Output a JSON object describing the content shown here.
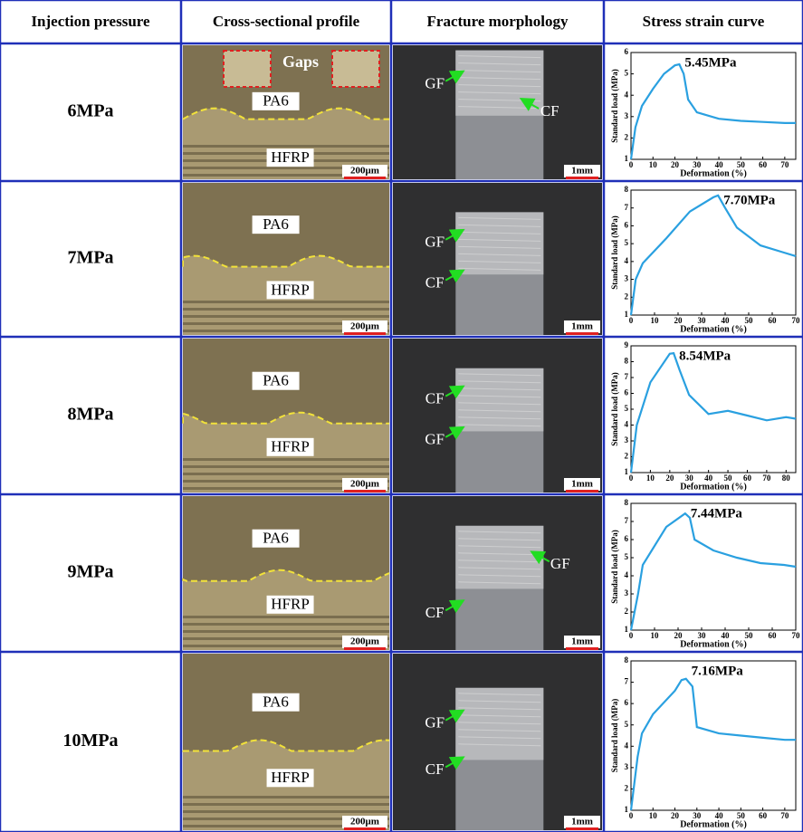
{
  "table": {
    "header": [
      "Injection pressure",
      "Cross-sectional profile",
      "Fracture morphology",
      "Stress strain curve"
    ],
    "rows": [
      {
        "pressure": "6MPa",
        "profile": {
          "labels": [
            "PA6",
            "HFRP"
          ],
          "gaps": "Gaps",
          "scale": "200μm"
        },
        "fracture": {
          "labels": [
            "GF",
            "CF"
          ],
          "scale": "1mm"
        },
        "chart": {
          "type": "line",
          "annotation": "5.45MPa",
          "x_label": "Deformation (%)",
          "y_label": "Standard load (MPa)",
          "color": "#2aa0e0",
          "x": [
            0,
            2,
            5,
            10,
            15,
            20,
            22,
            24,
            26,
            30,
            40,
            50,
            60,
            70,
            75
          ],
          "values": [
            1,
            2.5,
            3.5,
            4.3,
            5,
            5.4,
            5.45,
            5,
            3.8,
            3.2,
            2.9,
            2.8,
            2.75,
            2.7,
            2.7
          ],
          "xlim": [
            0,
            75
          ],
          "ylim": [
            1,
            6
          ],
          "xticks": [
            0,
            10,
            20,
            30,
            40,
            50,
            60,
            70
          ],
          "yticks": [
            1,
            2,
            3,
            4,
            5,
            6
          ]
        }
      },
      {
        "pressure": "7MPa",
        "profile": {
          "labels": [
            "PA6",
            "HFRP"
          ],
          "scale": "200μm"
        },
        "fracture": {
          "labels": [
            "GF",
            "CF"
          ],
          "scale": "1mm"
        },
        "chart": {
          "type": "line",
          "annotation": "7.70MPa",
          "x_label": "Deformation (%)",
          "y_label": "Standard load (MPa)",
          "color": "#2aa0e0",
          "x": [
            0,
            2,
            5,
            15,
            25,
            35,
            37,
            40,
            45,
            55,
            65,
            70
          ],
          "values": [
            1,
            3,
            3.9,
            5.3,
            6.8,
            7.6,
            7.7,
            7,
            5.9,
            4.9,
            4.5,
            4.3
          ],
          "xlim": [
            0,
            70
          ],
          "ylim": [
            1,
            8
          ],
          "xticks": [
            0,
            10,
            20,
            30,
            40,
            50,
            60,
            70
          ],
          "yticks": [
            1,
            2,
            3,
            4,
            5,
            6,
            7,
            8
          ]
        }
      },
      {
        "pressure": "8MPa",
        "profile": {
          "labels": [
            "PA6",
            "HFRP"
          ],
          "scale": "200μm"
        },
        "fracture": {
          "labels": [
            "CF",
            "GF"
          ],
          "scale": "1mm"
        },
        "chart": {
          "type": "line",
          "annotation": "8.54MPa",
          "x_label": "Deformation (%)",
          "y_label": "Standard load (MPa)",
          "color": "#2aa0e0",
          "x": [
            0,
            3,
            10,
            20,
            22,
            25,
            30,
            40,
            50,
            60,
            70,
            80,
            85
          ],
          "values": [
            1,
            4,
            6.7,
            8.5,
            8.54,
            7.5,
            5.9,
            4.7,
            4.9,
            4.6,
            4.3,
            4.5,
            4.4
          ],
          "xlim": [
            0,
            85
          ],
          "ylim": [
            1,
            9
          ],
          "xticks": [
            0,
            10,
            20,
            30,
            40,
            50,
            60,
            70,
            80
          ],
          "yticks": [
            1,
            2,
            3,
            4,
            5,
            6,
            7,
            8,
            9
          ]
        }
      },
      {
        "pressure": "9MPa",
        "profile": {
          "labels": [
            "PA6",
            "HFRP"
          ],
          "scale": "200μm"
        },
        "fracture": {
          "labels": [
            "GF",
            "CF"
          ],
          "scale": "1mm"
        },
        "chart": {
          "type": "line",
          "annotation": "7.44MPa",
          "x_label": "Deformation (%)",
          "y_label": "Standard load (MPa)",
          "color": "#2aa0e0",
          "x": [
            0,
            3,
            5,
            15,
            23,
            25,
            27,
            35,
            45,
            55,
            65,
            70
          ],
          "values": [
            1,
            3,
            4.6,
            6.7,
            7.44,
            7.2,
            6,
            5.4,
            5,
            4.7,
            4.6,
            4.5
          ],
          "xlim": [
            0,
            70
          ],
          "ylim": [
            1,
            8
          ],
          "xticks": [
            0,
            10,
            20,
            30,
            40,
            50,
            60,
            70
          ],
          "yticks": [
            1,
            2,
            3,
            4,
            5,
            6,
            7,
            8
          ]
        }
      },
      {
        "pressure": "10MPa",
        "profile": {
          "labels": [
            "PA6",
            "HFRP"
          ],
          "scale": "200μm"
        },
        "fracture": {
          "labels": [
            "GF",
            "CF"
          ],
          "scale": "1mm"
        },
        "chart": {
          "type": "line",
          "annotation": "7.16MPa",
          "x_label": "Deformation (%)",
          "y_label": "Standard load (MPa)",
          "color": "#2aa0e0",
          "x": [
            0,
            3,
            5,
            10,
            20,
            23,
            25,
            28,
            30,
            40,
            50,
            60,
            70,
            75
          ],
          "values": [
            1,
            3.5,
            4.6,
            5.5,
            6.6,
            7.1,
            7.16,
            6.8,
            4.9,
            4.6,
            4.5,
            4.4,
            4.3,
            4.3
          ],
          "xlim": [
            0,
            75
          ],
          "ylim": [
            1,
            8
          ],
          "xticks": [
            0,
            10,
            20,
            30,
            40,
            50,
            60,
            70
          ],
          "yticks": [
            1,
            2,
            3,
            4,
            5,
            6,
            7,
            8
          ]
        }
      }
    ]
  }
}
